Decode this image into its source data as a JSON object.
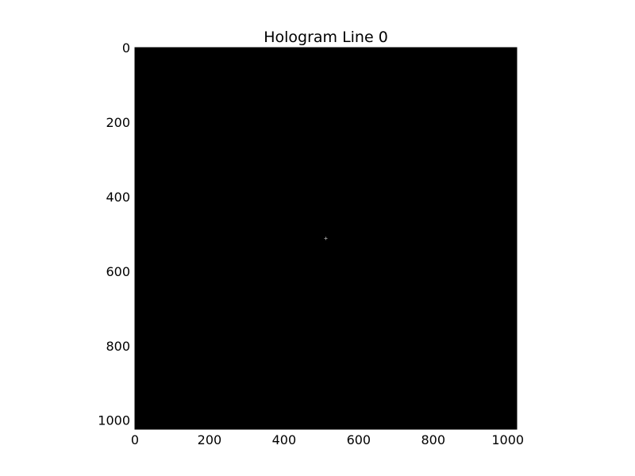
{
  "chart_data": {
    "type": "heatmap",
    "title": "Hologram Line 0",
    "xlabel": "",
    "ylabel": "",
    "image_width": 1024,
    "image_height": 1024,
    "xlim": [
      0,
      1024
    ],
    "ylim": [
      1024,
      0
    ],
    "y_axis_inverted": true,
    "x_ticks": [
      0,
      200,
      400,
      600,
      800,
      1000
    ],
    "y_ticks": [
      0,
      200,
      400,
      600,
      800,
      1000
    ],
    "x_tick_labels": [
      "0",
      "200",
      "400",
      "600",
      "800",
      "1000"
    ],
    "y_tick_labels": [
      "0",
      "200",
      "400",
      "600",
      "800",
      "1000"
    ],
    "colormap": "gray",
    "background_value": 0,
    "background_color": "#000000",
    "bright_points": [
      {
        "x": 512,
        "y": 512,
        "color": "#8c8c8c"
      }
    ],
    "grid": false,
    "legend": "none"
  }
}
